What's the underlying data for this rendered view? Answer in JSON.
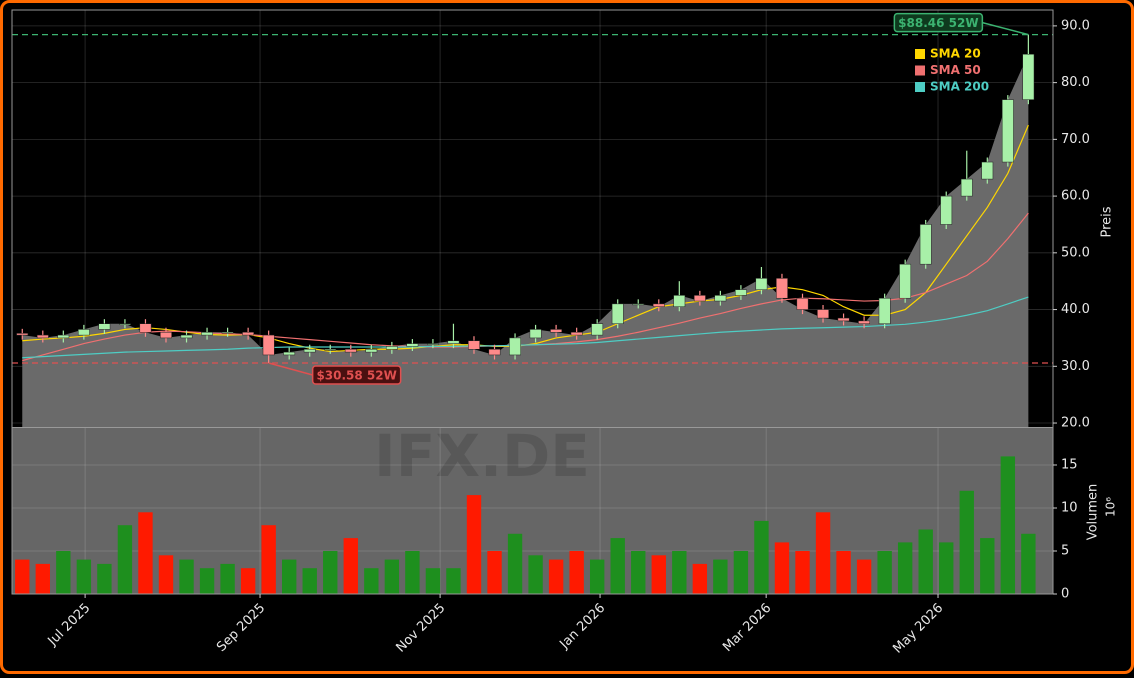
{
  "chart_data": [
    {
      "type": "candlestick",
      "x": [
        0,
        1,
        2,
        3,
        4,
        5,
        6,
        7,
        8,
        9,
        10,
        11,
        12,
        13,
        14,
        15,
        16,
        17,
        18,
        19,
        20,
        21,
        22,
        23,
        24,
        25,
        26,
        27,
        28,
        29,
        30,
        31,
        32,
        33,
        34,
        35,
        36,
        37,
        38,
        39,
        40,
        41,
        42,
        43,
        44,
        45,
        46,
        47,
        48,
        49
      ],
      "open": [
        35.8,
        35.5,
        35.0,
        35.5,
        36.5,
        37.5,
        37.5,
        36.0,
        35.0,
        35.5,
        36.0,
        36.0,
        35.5,
        32.0,
        32.5,
        33.0,
        33.0,
        32.5,
        33.0,
        33.5,
        34.0,
        34.0,
        34.5,
        33.0,
        32.0,
        35.0,
        36.5,
        36.0,
        35.5,
        37.5,
        41.0,
        41.0,
        40.5,
        42.5,
        41.5,
        42.5,
        43.5,
        45.5,
        42.0,
        40.0,
        38.5,
        38.0,
        37.5,
        42.0,
        48.0,
        55.0,
        60.0,
        63.0,
        66.0,
        77.0
      ],
      "high": [
        36.6,
        36.3,
        36.3,
        37.3,
        38.3,
        38.3,
        38.3,
        36.8,
        36.3,
        36.8,
        36.8,
        36.8,
        36.3,
        33.3,
        33.8,
        33.8,
        33.8,
        33.8,
        34.3,
        34.8,
        34.8,
        37.5,
        35.3,
        33.8,
        35.8,
        37.3,
        37.3,
        36.8,
        38.3,
        41.8,
        41.8,
        41.8,
        45.0,
        43.3,
        43.3,
        44.3,
        47.5,
        46.3,
        42.8,
        40.8,
        39.3,
        38.8,
        42.8,
        48.8,
        55.8,
        60.8,
        68.0,
        66.8,
        77.8,
        88.46
      ],
      "low": [
        34.7,
        34.2,
        34.2,
        34.7,
        35.7,
        36.7,
        35.2,
        34.2,
        34.2,
        34.7,
        35.2,
        34.7,
        30.58,
        31.2,
        31.7,
        32.2,
        31.7,
        31.7,
        32.2,
        32.7,
        33.2,
        33.2,
        32.2,
        31.2,
        31.2,
        34.2,
        35.2,
        34.7,
        34.7,
        36.7,
        40.2,
        39.7,
        39.7,
        40.7,
        40.7,
        41.7,
        42.7,
        41.2,
        39.2,
        37.7,
        37.2,
        36.7,
        36.7,
        41.2,
        47.2,
        54.2,
        59.2,
        62.2,
        65.2,
        76.2
      ],
      "close": [
        35.5,
        35.0,
        35.5,
        36.5,
        37.5,
        37.5,
        36.0,
        35.0,
        35.5,
        36.0,
        36.0,
        35.5,
        32.0,
        32.5,
        33.0,
        33.0,
        32.5,
        33.0,
        33.5,
        34.0,
        34.0,
        34.5,
        33.0,
        32.0,
        35.0,
        36.5,
        36.0,
        35.5,
        37.5,
        41.0,
        41.0,
        40.5,
        42.5,
        41.5,
        42.5,
        43.5,
        45.5,
        42.0,
        40.0,
        38.5,
        38.0,
        37.5,
        42.0,
        48.0,
        55.0,
        60.0,
        63.0,
        66.0,
        77.0,
        85.0
      ],
      "up_color": "#a8f0a8",
      "down_color": "#ff8a8a",
      "area_color": "#6a6a6a",
      "series": [
        {
          "name": "SMA 20",
          "color": "#ffd700",
          "values": [
            34.5,
            34.8,
            35,
            35.3,
            35.8,
            36.5,
            36.8,
            36.5,
            36,
            35.6,
            35.5,
            35.6,
            35,
            34,
            33.2,
            32.6,
            32.8,
            33,
            33,
            33.2,
            33.5,
            33.8,
            33.8,
            33.5,
            33.5,
            34,
            35,
            35.5,
            36,
            37.5,
            39,
            40.5,
            41,
            41.5,
            41.8,
            42.5,
            43.5,
            44,
            43.5,
            42.5,
            40.5,
            39,
            39,
            40,
            43,
            48,
            53,
            58,
            64,
            72.5
          ]
        },
        {
          "name": "SMA 50",
          "color": "#f07070",
          "values": [
            31,
            32,
            33,
            34,
            34.8,
            35.5,
            36,
            36.2,
            36.1,
            35.9,
            35.7,
            35.6,
            35.3,
            35,
            34.7,
            34.4,
            34.1,
            33.8,
            33.6,
            33.5,
            33.4,
            33.4,
            33.5,
            33.6,
            33.7,
            33.8,
            34,
            34.3,
            34.7,
            35.3,
            36,
            36.8,
            37.6,
            38.5,
            39.3,
            40.2,
            41,
            41.7,
            42,
            41.9,
            41.7,
            41.5,
            41.6,
            42,
            43,
            44.5,
            46,
            48.5,
            52.5,
            57
          ]
        },
        {
          "name": "SMA 200",
          "color": "#4ecdc4",
          "values": [
            31.5,
            31.7,
            31.9,
            32.1,
            32.3,
            32.5,
            32.6,
            32.7,
            32.8,
            32.9,
            33,
            33.2,
            33.3,
            33.4,
            33.4,
            33.4,
            33.4,
            33.4,
            33.4,
            33.4,
            33.5,
            33.5,
            33.6,
            33.6,
            33.7,
            33.8,
            33.9,
            34,
            34.2,
            34.5,
            34.8,
            35.1,
            35.4,
            35.7,
            36,
            36.2,
            36.4,
            36.6,
            36.7,
            36.8,
            36.9,
            37,
            37.2,
            37.4,
            37.8,
            38.3,
            39,
            39.8,
            41,
            42.2
          ]
        }
      ],
      "hlines": [
        {
          "value": 88.46,
          "label": "$88.46 52W",
          "color": "#3cb371"
        },
        {
          "value": 30.58,
          "label": "$30.58 52W",
          "color": "#e05050"
        }
      ],
      "ylabel": "Preis",
      "xlim": [
        -0.5,
        50.2
      ],
      "ylim": [
        19.3,
        92.8
      ],
      "yticks": [
        {
          "value": 20,
          "label": "20.0"
        },
        {
          "value": 30,
          "label": "30.0"
        },
        {
          "value": 40,
          "label": "40.0"
        },
        {
          "value": 50,
          "label": "50.0"
        },
        {
          "value": 60,
          "label": "60.0"
        },
        {
          "value": 70,
          "label": "70.0"
        },
        {
          "value": 80,
          "label": "80.0"
        },
        {
          "value": 90,
          "label": "90.0"
        }
      ],
      "grid": true
    },
    {
      "type": "bar",
      "x": [
        0,
        1,
        2,
        3,
        4,
        5,
        6,
        7,
        8,
        9,
        10,
        11,
        12,
        13,
        14,
        15,
        16,
        17,
        18,
        19,
        20,
        21,
        22,
        23,
        24,
        25,
        26,
        27,
        28,
        29,
        30,
        31,
        32,
        33,
        34,
        35,
        36,
        37,
        38,
        39,
        40,
        41,
        42,
        43,
        44,
        45,
        46,
        47,
        48,
        49
      ],
      "values": [
        4,
        3.5,
        5,
        4,
        3.5,
        8,
        9.5,
        4.5,
        4,
        3,
        3.5,
        3,
        8,
        4,
        3,
        5,
        6.5,
        3,
        4,
        5,
        3,
        3,
        11.5,
        5,
        7,
        4.5,
        4,
        5,
        4,
        6.5,
        5,
        4.5,
        5,
        3.5,
        4,
        5,
        8.5,
        6,
        5,
        9.5,
        5,
        4,
        5,
        6,
        7.5,
        6,
        12,
        6.5,
        16,
        7
      ],
      "up_color": "#1e8f1e",
      "down_color": "#ff1a00",
      "ylabel": "Volumen",
      "scale_label": "10⁶",
      "watermark": "IFX.DE",
      "xlim": [
        -0.5,
        50.2
      ],
      "ylim": [
        0,
        19.3
      ],
      "yticks": [
        0,
        5,
        10,
        15
      ],
      "xticks": [
        {
          "value": 3.06,
          "label": "Jul 2025"
        },
        {
          "value": 11.58,
          "label": "Sep 2025"
        },
        {
          "value": 20.35,
          "label": "Nov 2025"
        },
        {
          "value": 28.14,
          "label": "Jan 2026"
        },
        {
          "value": 36.23,
          "label": "Mar 2026"
        },
        {
          "value": 44.6,
          "label": "May 2026"
        }
      ],
      "grid": true
    }
  ]
}
